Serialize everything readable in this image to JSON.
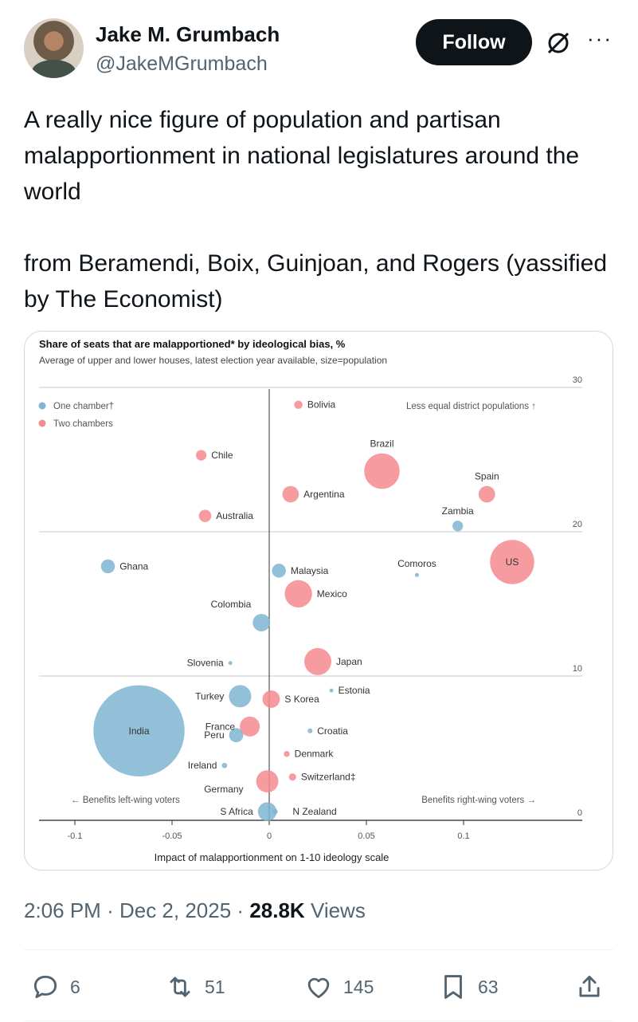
{
  "author": {
    "name": "Jake M. Grumbach",
    "handle": "@JakeMGrumbach"
  },
  "follow_label": "Follow",
  "more_label": "···",
  "tweet_text": "A really nice figure of population and partisan malapportionment in national legislatures around the world\n\nfrom Beramendi, Boix, Guinjoan, and Rogers (yassified by The Economist)",
  "timestamp": {
    "time": "2:06 PM",
    "sep": "·",
    "date": "Dec 2, 2025",
    "views_count": "28.8K",
    "views_label": "Views"
  },
  "actions": {
    "replies": "6",
    "reposts": "51",
    "likes": "145",
    "bookmarks": "63"
  },
  "colors": {
    "one_chamber": "#7fb5d1",
    "two_chambers": "#f58b8f",
    "follow_bg": "#0f1419"
  },
  "chart_data": {
    "type": "scatter",
    "title": "Share of seats that are malapportioned* by ideological bias, %",
    "subtitle": "Average of upper and lower houses, latest election year available, size=population",
    "xlabel": "Impact of malapportionment on 1-10 ideology scale",
    "ylabel": "",
    "xlim": [
      -0.1,
      0.15
    ],
    "ylim": [
      0,
      30
    ],
    "x_ticks": [
      "-0.1",
      "-0.05",
      "0",
      "0.05",
      "0.1"
    ],
    "y_ticks": [
      "0",
      "10",
      "20",
      "30"
    ],
    "legend": [
      {
        "label": "One chamber†",
        "color": "#7fb5d1"
      },
      {
        "label": "Two chambers",
        "color": "#f58b8f"
      }
    ],
    "annotations": {
      "top_right": "Less equal district populations ↑",
      "bottom_left": "← Benefits left-wing voters",
      "bottom_right": "Benefits right-wing voters →"
    },
    "points": [
      {
        "label": "Bolivia",
        "x": 0.015,
        "y": 28.8,
        "chambers": 2,
        "pop": 12
      },
      {
        "label": "Brazil",
        "x": 0.058,
        "y": 24.2,
        "chambers": 2,
        "pop": 215
      },
      {
        "label": "Chile",
        "x": -0.035,
        "y": 25.3,
        "chambers": 2,
        "pop": 19
      },
      {
        "label": "Spain",
        "x": 0.112,
        "y": 22.6,
        "chambers": 2,
        "pop": 47
      },
      {
        "label": "Argentina",
        "x": 0.011,
        "y": 22.6,
        "chambers": 2,
        "pop": 46
      },
      {
        "label": "Australia",
        "x": -0.033,
        "y": 21.1,
        "chambers": 2,
        "pop": 26
      },
      {
        "label": "Zambia",
        "x": 0.097,
        "y": 20.4,
        "chambers": 1,
        "pop": 19
      },
      {
        "label": "Ghana",
        "x": -0.083,
        "y": 17.6,
        "chambers": 1,
        "pop": 33
      },
      {
        "label": "Malaysia",
        "x": 0.005,
        "y": 17.3,
        "chambers": 1,
        "pop": 33
      },
      {
        "label": "Comoros",
        "x": 0.076,
        "y": 17.0,
        "chambers": 1,
        "pop": 1
      },
      {
        "label": "US",
        "x": 0.125,
        "y": 17.9,
        "chambers": 2,
        "pop": 333
      },
      {
        "label": "Mexico",
        "x": 0.015,
        "y": 15.7,
        "chambers": 2,
        "pop": 128
      },
      {
        "label": "Colombia",
        "x": -0.004,
        "y": 13.7,
        "chambers": 1,
        "pop": 52
      },
      {
        "label": "Slovenia",
        "x": -0.02,
        "y": 10.9,
        "chambers": 1,
        "pop": 2
      },
      {
        "label": "Japan",
        "x": 0.025,
        "y": 11.0,
        "chambers": 2,
        "pop": 125
      },
      {
        "label": "Estonia",
        "x": 0.032,
        "y": 9.0,
        "chambers": 1,
        "pop": 1.3
      },
      {
        "label": "Turkey",
        "x": -0.015,
        "y": 8.6,
        "chambers": 1,
        "pop": 85
      },
      {
        "label": "S Korea",
        "x": 0.001,
        "y": 8.4,
        "chambers": 2,
        "pop": 52
      },
      {
        "label": "France",
        "x": -0.01,
        "y": 6.5,
        "chambers": 2,
        "pop": 68
      },
      {
        "label": "Peru",
        "x": -0.017,
        "y": 5.9,
        "chambers": 1,
        "pop": 34
      },
      {
        "label": "Croatia",
        "x": 0.021,
        "y": 6.2,
        "chambers": 1,
        "pop": 4
      },
      {
        "label": "India",
        "x": -0.067,
        "y": 6.2,
        "chambers": 1,
        "pop": 1417
      },
      {
        "label": "Denmark",
        "x": 0.009,
        "y": 4.6,
        "chambers": 2,
        "pop": 6
      },
      {
        "label": "Ireland",
        "x": -0.023,
        "y": 3.8,
        "chambers": 1,
        "pop": 5
      },
      {
        "label": "Switzerland‡",
        "x": 0.012,
        "y": 3.0,
        "chambers": 2,
        "pop": 9
      },
      {
        "label": "Germany",
        "x": -0.001,
        "y": 2.7,
        "chambers": 2,
        "pop": 84
      },
      {
        "label": "S Africa",
        "x": -0.001,
        "y": 0.6,
        "chambers": 1,
        "pop": 60
      },
      {
        "label": "N Zealand",
        "x": 0.003,
        "y": 0.6,
        "chambers": 1,
        "pop": 5
      }
    ]
  }
}
